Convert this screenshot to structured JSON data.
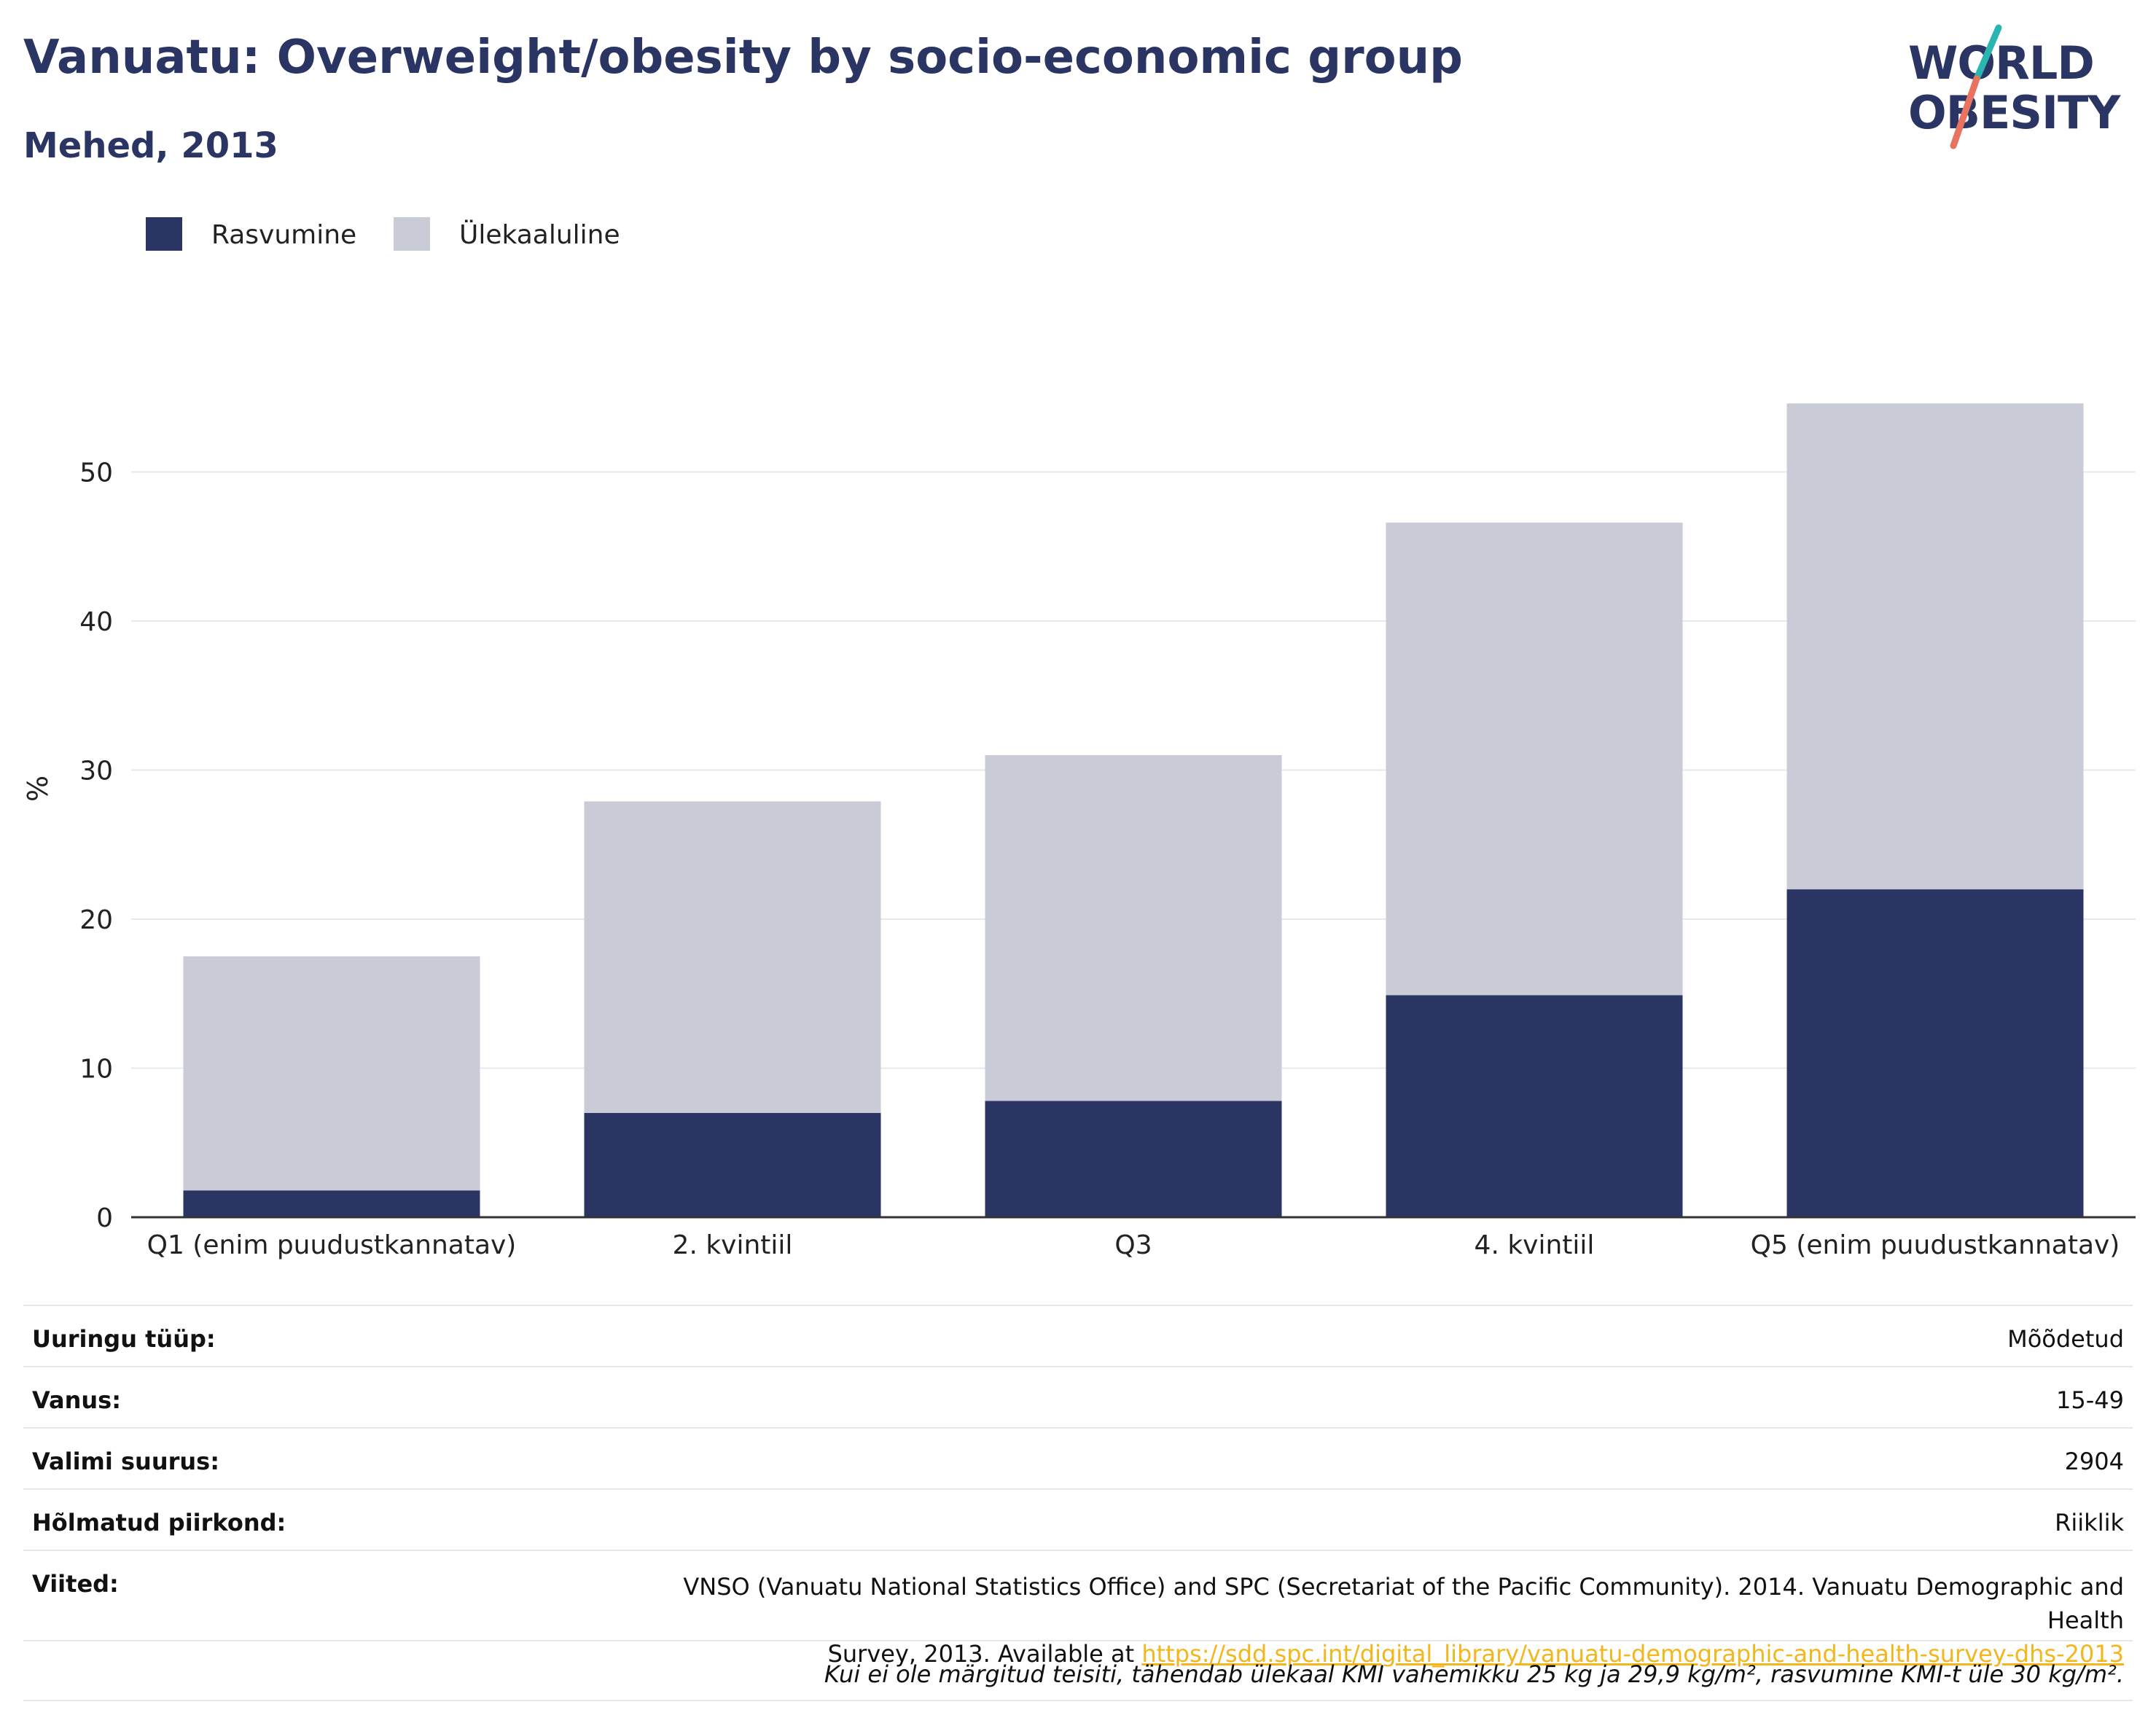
{
  "title": "Vanuatu: Overweight/obesity by socio-economic group",
  "subtitle": "Mehed, 2013",
  "logo": {
    "line1": "WORLD",
    "line2": "OBESITY"
  },
  "colors": {
    "obesity": "#2a3563",
    "overweight": "#c9cbd6",
    "accent_teal": "#2bb5b0",
    "accent_red": "#e8735e",
    "link": "#f3b61c"
  },
  "chart_data": {
    "type": "bar",
    "stacked": true,
    "categories": [
      "Q1 (enim puudustkannatav)",
      "2. kvintiil",
      "Q3",
      "4. kvintiil",
      "Q5 (enim puudustkannatav)"
    ],
    "series": [
      {
        "name": "Rasvumine",
        "color": "#2a3563",
        "values": [
          1.8,
          7.0,
          7.8,
          14.9,
          22.0
        ]
      },
      {
        "name": "Ülekaaluline",
        "color": "#c9cbd6",
        "values": [
          15.7,
          20.9,
          23.2,
          31.7,
          32.6
        ]
      }
    ],
    "ylabel": "%",
    "xlabel": "",
    "yticks": [
      0,
      10,
      20,
      30,
      40,
      50
    ],
    "ylim": [
      0,
      60
    ],
    "grid": true,
    "legend": "top-left"
  },
  "meta": {
    "survey_type": {
      "label": "Uuringu tüüp:",
      "value": "Mõõdetud"
    },
    "age": {
      "label": "Vanus:",
      "value": "15-49"
    },
    "sample_size": {
      "label": "Valimi suurus:",
      "value": "2904"
    },
    "area": {
      "label": "Hõlmatud piirkond:",
      "value": "Riiklik"
    },
    "references": {
      "label": "Viited:",
      "text_line1": "VNSO (Vanuatu National Statistics Office) and SPC (Secretariat of the Pacific Community). 2014. Vanuatu Demographic and Health",
      "text_line2": "Survey, 2013. Available at ",
      "link": "https://sdd.spc.int/digital_library/vanuatu-demographic-and-health-survey-dhs-2013"
    },
    "note": "Kui ei ole märgitud teisiti, tähendab ülekaal KMI vahemikku 25 kg ja 29,9 kg/m², rasvumine KMI-t üle 30 kg/m²."
  }
}
